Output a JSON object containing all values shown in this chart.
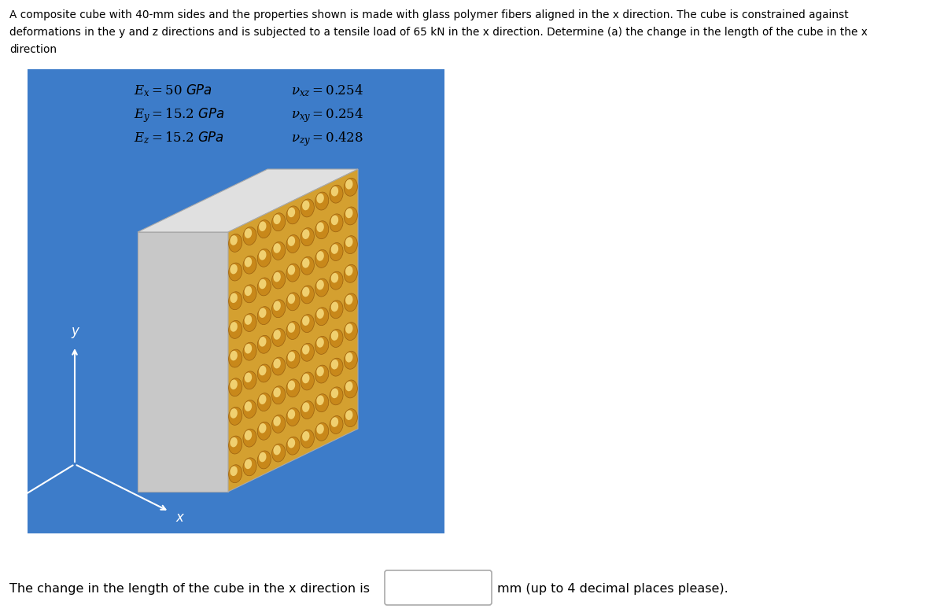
{
  "title_lines": [
    "A composite cube with 40-mm sides and the properties shown is made with glass polymer fibers aligned in the x direction. The cube is constrained against",
    "deformations in the y and z directions and is subjected to a tensile load of 65 kN in the x direction. Determine (a) the change in the length of the cube in the x",
    "direction"
  ],
  "bg_color": "#3d7cc9",
  "cube_top_color": "#e0e0e0",
  "cube_left_color": "#c8c8c8",
  "cube_front_color": "#d4a030",
  "circle_outer_color": "#c8952a",
  "circle_highlight_color": "#f0d890",
  "props_left": [
    "$E_x = 50$ GPa",
    "$E_y = 15.2$ GPa",
    "$E_z = 15.2$ GPa"
  ],
  "props_right": [
    "$\\nu_{xz} = 0.254$",
    "$\\nu_{xy} = 0.254$",
    "$\\nu_{zy} = 0.428$"
  ],
  "bottom_text_left": "The change in the length of the cube in the x direction is",
  "bottom_text_right": "mm (up to 4 decimal places please).",
  "n_fiber_cols": 9,
  "n_fiber_rows": 9,
  "axis_color": "white"
}
